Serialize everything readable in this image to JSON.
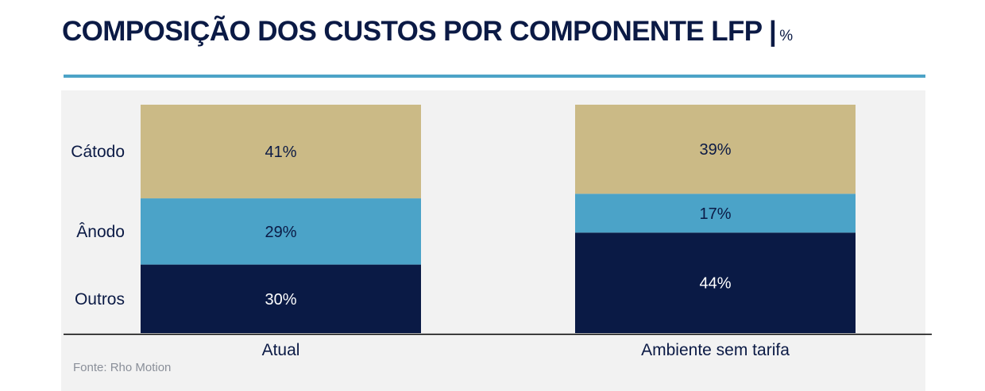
{
  "header": {
    "title": "COMPOSIÇÃO DOS CUSTOS POR COMPONENTE LFP |",
    "unit": "%"
  },
  "source": "Fonte: Rho Motion",
  "colors": {
    "accent_rule": "#4ca3c7",
    "title": "#0b1a45",
    "panel_bg": "#f2f2f2"
  },
  "chart_data": {
    "type": "bar",
    "stacked": true,
    "normalized_100": true,
    "title": "COMPOSIÇÃO DOS CUSTOS POR COMPONENTE LFP | %",
    "categories": [
      "Atual",
      "Ambiente sem tarifa"
    ],
    "series": [
      {
        "name": "Outros",
        "values": [
          30,
          44
        ],
        "labels": [
          "30%",
          "44%"
        ],
        "color": "#0a1a45",
        "label_color": "#ffffff"
      },
      {
        "name": "Ânodo",
        "values": [
          29,
          17
        ],
        "labels": [
          "29%",
          "17%"
        ],
        "color": "#4ba3c8",
        "label_color": "#0b1a45"
      },
      {
        "name": "Cátodo",
        "values": [
          41,
          39
        ],
        "labels": [
          "41%",
          "39%"
        ],
        "color": "#cbba86",
        "label_color": "#0b1a45"
      }
    ],
    "ylim": [
      0,
      100
    ],
    "xlabel": "",
    "ylabel": "",
    "legend": "left, aligned with segments of first bar"
  }
}
